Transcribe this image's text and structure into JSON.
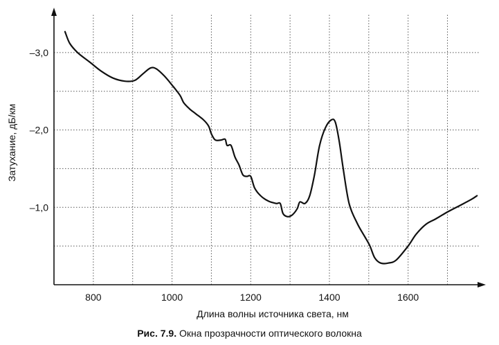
{
  "caption": {
    "label": "Рис. 7.9.",
    "text": " Окна прозрачности оптического волокна"
  },
  "chart_data": {
    "type": "line",
    "title": "",
    "xlabel": "Длина волны источника света, нм",
    "ylabel": "Затухание, дБ/км",
    "xlim": [
      700,
      1780
    ],
    "ylim": [
      0,
      -3.5
    ],
    "x_ticks": [
      800,
      1000,
      1200,
      1400,
      1600
    ],
    "x_tick_labels": [
      "800",
      "1000",
      "1200",
      "1400",
      "1600"
    ],
    "y_ticks": [
      -1.0,
      -2.0,
      -3.0
    ],
    "y_tick_labels": [
      "–1,0",
      "–2,0",
      "–3,0"
    ],
    "grid": true,
    "grid_style": "dotted",
    "x_grid": [
      800,
      900,
      1000,
      1100,
      1200,
      1300,
      1400,
      1500,
      1600,
      1700
    ],
    "y_grid": [
      -0.5,
      -1.0,
      -1.5,
      -2.0,
      -2.5,
      -3.0
    ],
    "series": [
      {
        "name": "",
        "color": "#111111",
        "points": [
          [
            728,
            -3.27
          ],
          [
            740,
            -3.12
          ],
          [
            760,
            -3.0
          ],
          [
            790,
            -2.88
          ],
          [
            820,
            -2.76
          ],
          [
            850,
            -2.67
          ],
          [
            880,
            -2.63
          ],
          [
            905,
            -2.64
          ],
          [
            925,
            -2.72
          ],
          [
            945,
            -2.8
          ],
          [
            960,
            -2.79
          ],
          [
            980,
            -2.7
          ],
          [
            1000,
            -2.58
          ],
          [
            1020,
            -2.45
          ],
          [
            1030,
            -2.35
          ],
          [
            1045,
            -2.27
          ],
          [
            1060,
            -2.21
          ],
          [
            1080,
            -2.13
          ],
          [
            1093,
            -2.05
          ],
          [
            1100,
            -1.95
          ],
          [
            1110,
            -1.87
          ],
          [
            1125,
            -1.87
          ],
          [
            1135,
            -1.88
          ],
          [
            1140,
            -1.8
          ],
          [
            1150,
            -1.8
          ],
          [
            1160,
            -1.65
          ],
          [
            1170,
            -1.55
          ],
          [
            1180,
            -1.42
          ],
          [
            1190,
            -1.4
          ],
          [
            1200,
            -1.4
          ],
          [
            1210,
            -1.25
          ],
          [
            1225,
            -1.15
          ],
          [
            1245,
            -1.08
          ],
          [
            1265,
            -1.05
          ],
          [
            1275,
            -1.05
          ],
          [
            1282,
            -0.92
          ],
          [
            1293,
            -0.88
          ],
          [
            1305,
            -0.9
          ],
          [
            1318,
            -0.98
          ],
          [
            1325,
            -1.07
          ],
          [
            1338,
            -1.05
          ],
          [
            1350,
            -1.15
          ],
          [
            1362,
            -1.42
          ],
          [
            1375,
            -1.8
          ],
          [
            1390,
            -2.03
          ],
          [
            1405,
            -2.13
          ],
          [
            1415,
            -2.1
          ],
          [
            1425,
            -1.85
          ],
          [
            1435,
            -1.5
          ],
          [
            1450,
            -1.05
          ],
          [
            1470,
            -0.8
          ],
          [
            1490,
            -0.62
          ],
          [
            1503,
            -0.5
          ],
          [
            1515,
            -0.35
          ],
          [
            1530,
            -0.28
          ],
          [
            1550,
            -0.28
          ],
          [
            1570,
            -0.32
          ],
          [
            1600,
            -0.5
          ],
          [
            1620,
            -0.65
          ],
          [
            1645,
            -0.78
          ],
          [
            1670,
            -0.85
          ],
          [
            1700,
            -0.94
          ],
          [
            1730,
            -1.02
          ],
          [
            1760,
            -1.1
          ],
          [
            1775,
            -1.15
          ]
        ]
      }
    ]
  }
}
